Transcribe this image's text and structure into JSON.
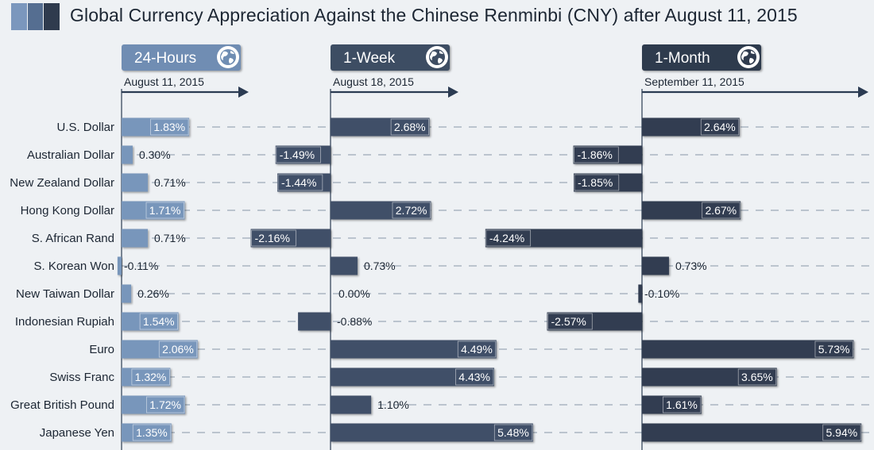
{
  "title": "Global Currency Appreciation Against the Chinese Renminbi (CNY) after August 11, 2015",
  "colors": {
    "background": "#eef1f4",
    "panel_24h": "#6f8db3",
    "panel_1w": "#3e4d63",
    "panel_1m": "#2f3b4e",
    "bar_24h": "#7896bb",
    "bar_1w": "#3f4f67",
    "bar_1m": "#303d51",
    "axis": "#2b3b52",
    "text": "#1c2633",
    "title_squares": [
      "#7b97bd",
      "#556e91",
      "#2f3b4e"
    ]
  },
  "chart_data": {
    "type": "bar",
    "title": "Global Currency Appreciation Against the Chinese Renminbi (CNY) after August 11, 2015",
    "categories": [
      "U.S. Dollar",
      "Australian Dollar",
      "New Zealand Dollar",
      "Hong Kong Dollar",
      "S. African Rand",
      "S. Korean Won",
      "New Taiwan Dollar",
      "Indonesian Rupiah",
      "Euro",
      "Swiss Franc",
      "Great British Pound",
      "Japanese Yen"
    ],
    "series": [
      {
        "name": "24-Hours",
        "date": "August 11, 2015",
        "icon": "globe-icon",
        "values": [
          1.83,
          0.3,
          0.71,
          1.71,
          0.71,
          -0.11,
          0.26,
          1.54,
          2.06,
          1.32,
          1.72,
          1.35
        ],
        "labels": [
          "1.83%",
          "0.30%",
          "0.71%",
          "1.71%",
          "0.71%",
          "-0.11%",
          "0.26%",
          "1.54%",
          "2.06%",
          "1.32%",
          "1.72%",
          "1.35%"
        ]
      },
      {
        "name": "1-Week",
        "date": "August 18, 2015",
        "icon": "globe-icon",
        "values": [
          2.68,
          -1.49,
          -1.44,
          2.72,
          -2.16,
          0.73,
          0.0,
          -0.88,
          4.49,
          4.43,
          1.1,
          5.48
        ],
        "labels": [
          "2.68%",
          "-1.49%",
          "-1.44%",
          "2.72%",
          "-2.16%",
          "0.73%",
          "0.00%",
          "-0.88%",
          "4.49%",
          "4.43%",
          "1.10%",
          "5.48%"
        ]
      },
      {
        "name": "1-Month",
        "date": "September 11, 2015",
        "icon": "globe-icon",
        "values": [
          2.64,
          -1.86,
          -1.85,
          2.67,
          -4.24,
          0.73,
          -0.1,
          -2.57,
          5.73,
          3.65,
          1.61,
          5.94
        ],
        "labels": [
          "2.64%",
          "-1.86%",
          "-1.85%",
          "2.67%",
          "-4.24%",
          "0.73%",
          "-0.10%",
          "-2.57%",
          "5.73%",
          "3.65%",
          "1.61%",
          "5.94%"
        ]
      }
    ]
  }
}
